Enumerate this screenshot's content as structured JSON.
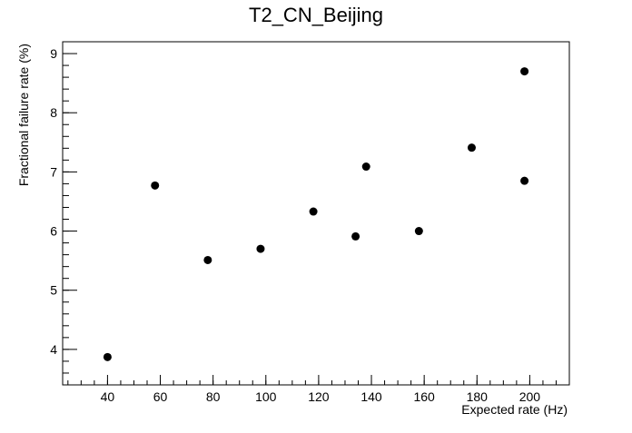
{
  "chart_data": {
    "type": "scatter",
    "title": "T2_CN_Beijing",
    "xlabel": "Expected rate (Hz)",
    "ylabel": "Fractional failure rate (%)",
    "xlim": [
      23,
      215
    ],
    "ylim": [
      3.4,
      9.2
    ],
    "x_ticks": [
      40,
      60,
      80,
      100,
      120,
      140,
      160,
      180,
      200
    ],
    "y_ticks": [
      4,
      5,
      6,
      7,
      8,
      9
    ],
    "x_minor_step": 5,
    "y_minor_step": 0.2,
    "grid": false,
    "legend": "none",
    "marker_color": "#000000",
    "points": [
      {
        "x": 40,
        "y": 3.87
      },
      {
        "x": 58,
        "y": 6.77
      },
      {
        "x": 78,
        "y": 5.51
      },
      {
        "x": 98,
        "y": 5.7
      },
      {
        "x": 118,
        "y": 6.33
      },
      {
        "x": 134,
        "y": 5.91
      },
      {
        "x": 138,
        "y": 7.09
      },
      {
        "x": 158,
        "y": 6.0
      },
      {
        "x": 178,
        "y": 7.41
      },
      {
        "x": 198,
        "y": 8.7
      },
      {
        "x": 198,
        "y": 6.85
      }
    ]
  }
}
